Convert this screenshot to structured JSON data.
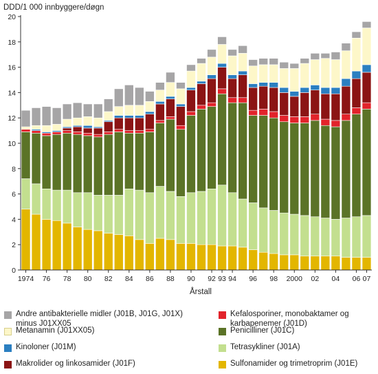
{
  "chart_data": {
    "type": "bar",
    "stacked": true,
    "ylabel": "DDD/1 000 innbyggere/døgn",
    "xlabel": "Årstall",
    "ylim": [
      0,
      20
    ],
    "yticks": [
      "0",
      "2",
      "4",
      "6",
      "8",
      "10",
      "12",
      "14",
      "16",
      "18",
      "20"
    ],
    "grid": false,
    "legend_position": "bottom",
    "categories": [
      "1974",
      "1975",
      "1976",
      "1977",
      "1978",
      "1979",
      "1980",
      "1981",
      "1982",
      "1983",
      "1984",
      "1985",
      "1986",
      "1987",
      "1988",
      "1989",
      "1990",
      "1991",
      "1992",
      "1993",
      "1994",
      "1995",
      "1996",
      "1997",
      "1998",
      "1999",
      "2000",
      "2001",
      "2002",
      "2003",
      "2004",
      "2005",
      "2006",
      "2007"
    ],
    "tick_labels": [
      "1974",
      "76",
      "78",
      "80",
      "82",
      "84",
      "86",
      "88",
      "90",
      "92",
      "93",
      "94",
      "96",
      "98",
      "2000",
      "02",
      "04",
      "06",
      "07"
    ],
    "tick_positions": [
      "1974",
      "1976",
      "1978",
      "1980",
      "1982",
      "1984",
      "1986",
      "1988",
      "1990",
      "1992",
      "1993",
      "1994",
      "1996",
      "1998",
      "2000",
      "2002",
      "2004",
      "2006",
      "2007"
    ],
    "series": [
      {
        "name": "Sulfonamider og trimetroprim (J01E)",
        "color": "#e3b600",
        "values": [
          4.8,
          4.4,
          4.0,
          3.9,
          3.7,
          3.4,
          3.2,
          3.1,
          2.9,
          2.8,
          2.7,
          2.4,
          2.1,
          2.5,
          2.4,
          2.1,
          2.1,
          2.0,
          2.0,
          1.9,
          1.9,
          1.8,
          1.6,
          1.4,
          1.3,
          1.2,
          1.2,
          1.1,
          1.1,
          1.1,
          1.1,
          1.0,
          1.0,
          1.0
        ]
      },
      {
        "name": "Tetrasykliner (J01A)",
        "color": "#c3df8f",
        "values": [
          2.4,
          2.4,
          2.4,
          2.4,
          2.6,
          2.7,
          2.9,
          2.8,
          3.0,
          3.1,
          3.7,
          3.9,
          4.0,
          4.1,
          3.8,
          3.7,
          4.0,
          4.2,
          4.4,
          4.8,
          4.2,
          3.8,
          3.7,
          3.5,
          3.4,
          3.3,
          3.2,
          3.2,
          3.1,
          3.0,
          2.9,
          3.1,
          3.2,
          3.3
        ]
      },
      {
        "name": "Penicilliner (J01C)",
        "color": "#5b7327",
        "values": [
          3.7,
          4.0,
          4.2,
          4.4,
          4.5,
          4.6,
          4.5,
          4.6,
          4.8,
          5.0,
          4.4,
          4.5,
          4.8,
          5.0,
          5.7,
          5.3,
          6.1,
          6.5,
          6.5,
          7.2,
          7.1,
          7.6,
          6.9,
          7.3,
          7.3,
          7.2,
          7.2,
          7.3,
          7.6,
          7.3,
          7.3,
          7.7,
          8.1,
          8.4
        ]
      },
      {
        "name": "Kefalosporiner, monobaktamer og\nkarbapenemer (J01D)",
        "color": "#e2232b",
        "values": [
          0.2,
          0.2,
          0.2,
          0.2,
          0.2,
          0.2,
          0.2,
          0.2,
          0.2,
          0.2,
          0.2,
          0.2,
          0.2,
          0.2,
          0.2,
          0.3,
          0.3,
          0.3,
          0.3,
          0.4,
          0.4,
          0.4,
          0.4,
          0.5,
          0.5,
          0.5,
          0.5,
          0.5,
          0.5,
          0.5,
          0.5,
          0.5,
          0.5,
          0.5
        ]
      },
      {
        "name": "Makrolider og linkosamider (J01F)",
        "color": "#8b1414",
        "values": [
          0.0,
          0.0,
          0.0,
          0.0,
          0.2,
          0.4,
          0.4,
          0.5,
          0.8,
          0.9,
          1.0,
          1.0,
          1.2,
          1.3,
          1.4,
          1.5,
          1.7,
          1.7,
          1.9,
          1.7,
          1.5,
          1.8,
          1.8,
          1.8,
          1.9,
          1.8,
          1.6,
          1.9,
          1.9,
          2.0,
          2.1,
          2.2,
          2.3,
          2.4
        ]
      },
      {
        "name": "Kinoloner (J01M)",
        "color": "#2b7fc1",
        "values": [
          0.0,
          0.1,
          0.1,
          0.1,
          0.1,
          0.1,
          0.2,
          0.1,
          0.1,
          0.2,
          0.2,
          0.2,
          0.2,
          0.2,
          0.2,
          0.2,
          0.2,
          0.2,
          0.3,
          0.3,
          0.3,
          0.3,
          0.3,
          0.3,
          0.4,
          0.4,
          0.4,
          0.4,
          0.4,
          0.5,
          0.5,
          0.6,
          0.6,
          0.6
        ]
      },
      {
        "name": "Metanamin (J01XX05)",
        "color": "#fdf7c9",
        "values": [
          0.2,
          0.3,
          0.5,
          0.5,
          0.6,
          0.6,
          0.7,
          0.7,
          0.7,
          0.7,
          0.8,
          0.8,
          0.8,
          0.9,
          1.1,
          1.2,
          1.3,
          1.4,
          1.4,
          1.5,
          1.5,
          1.4,
          1.4,
          1.4,
          1.4,
          1.5,
          1.8,
          1.9,
          2.0,
          2.3,
          2.2,
          2.2,
          2.6,
          2.9
        ]
      },
      {
        "name": "Andre antibakterielle midler  (J01B, J01G, J01X)\nminus J01XX05",
        "color": "#a6a5a6",
        "values": [
          1.3,
          1.4,
          1.5,
          1.3,
          1.2,
          1.2,
          1.0,
          1.1,
          1.0,
          1.4,
          1.6,
          1.4,
          0.8,
          0.6,
          0.8,
          0.5,
          0.5,
          0.4,
          0.6,
          0.6,
          0.5,
          0.6,
          0.5,
          0.5,
          0.5,
          0.5,
          0.4,
          0.4,
          0.5,
          0.4,
          0.6,
          0.6,
          0.5,
          0.5
        ]
      }
    ]
  },
  "legend_layout": [
    {
      "series": 7,
      "col": 0,
      "row": 0
    },
    {
      "series": 3,
      "col": 1,
      "row": 0
    },
    {
      "series": 6,
      "col": 0,
      "row": 1
    },
    {
      "series": 2,
      "col": 1,
      "row": 1
    },
    {
      "series": 5,
      "col": 0,
      "row": 2
    },
    {
      "series": 1,
      "col": 1,
      "row": 2
    },
    {
      "series": 4,
      "col": 0,
      "row": 3
    },
    {
      "series": 0,
      "col": 1,
      "row": 3
    }
  ]
}
